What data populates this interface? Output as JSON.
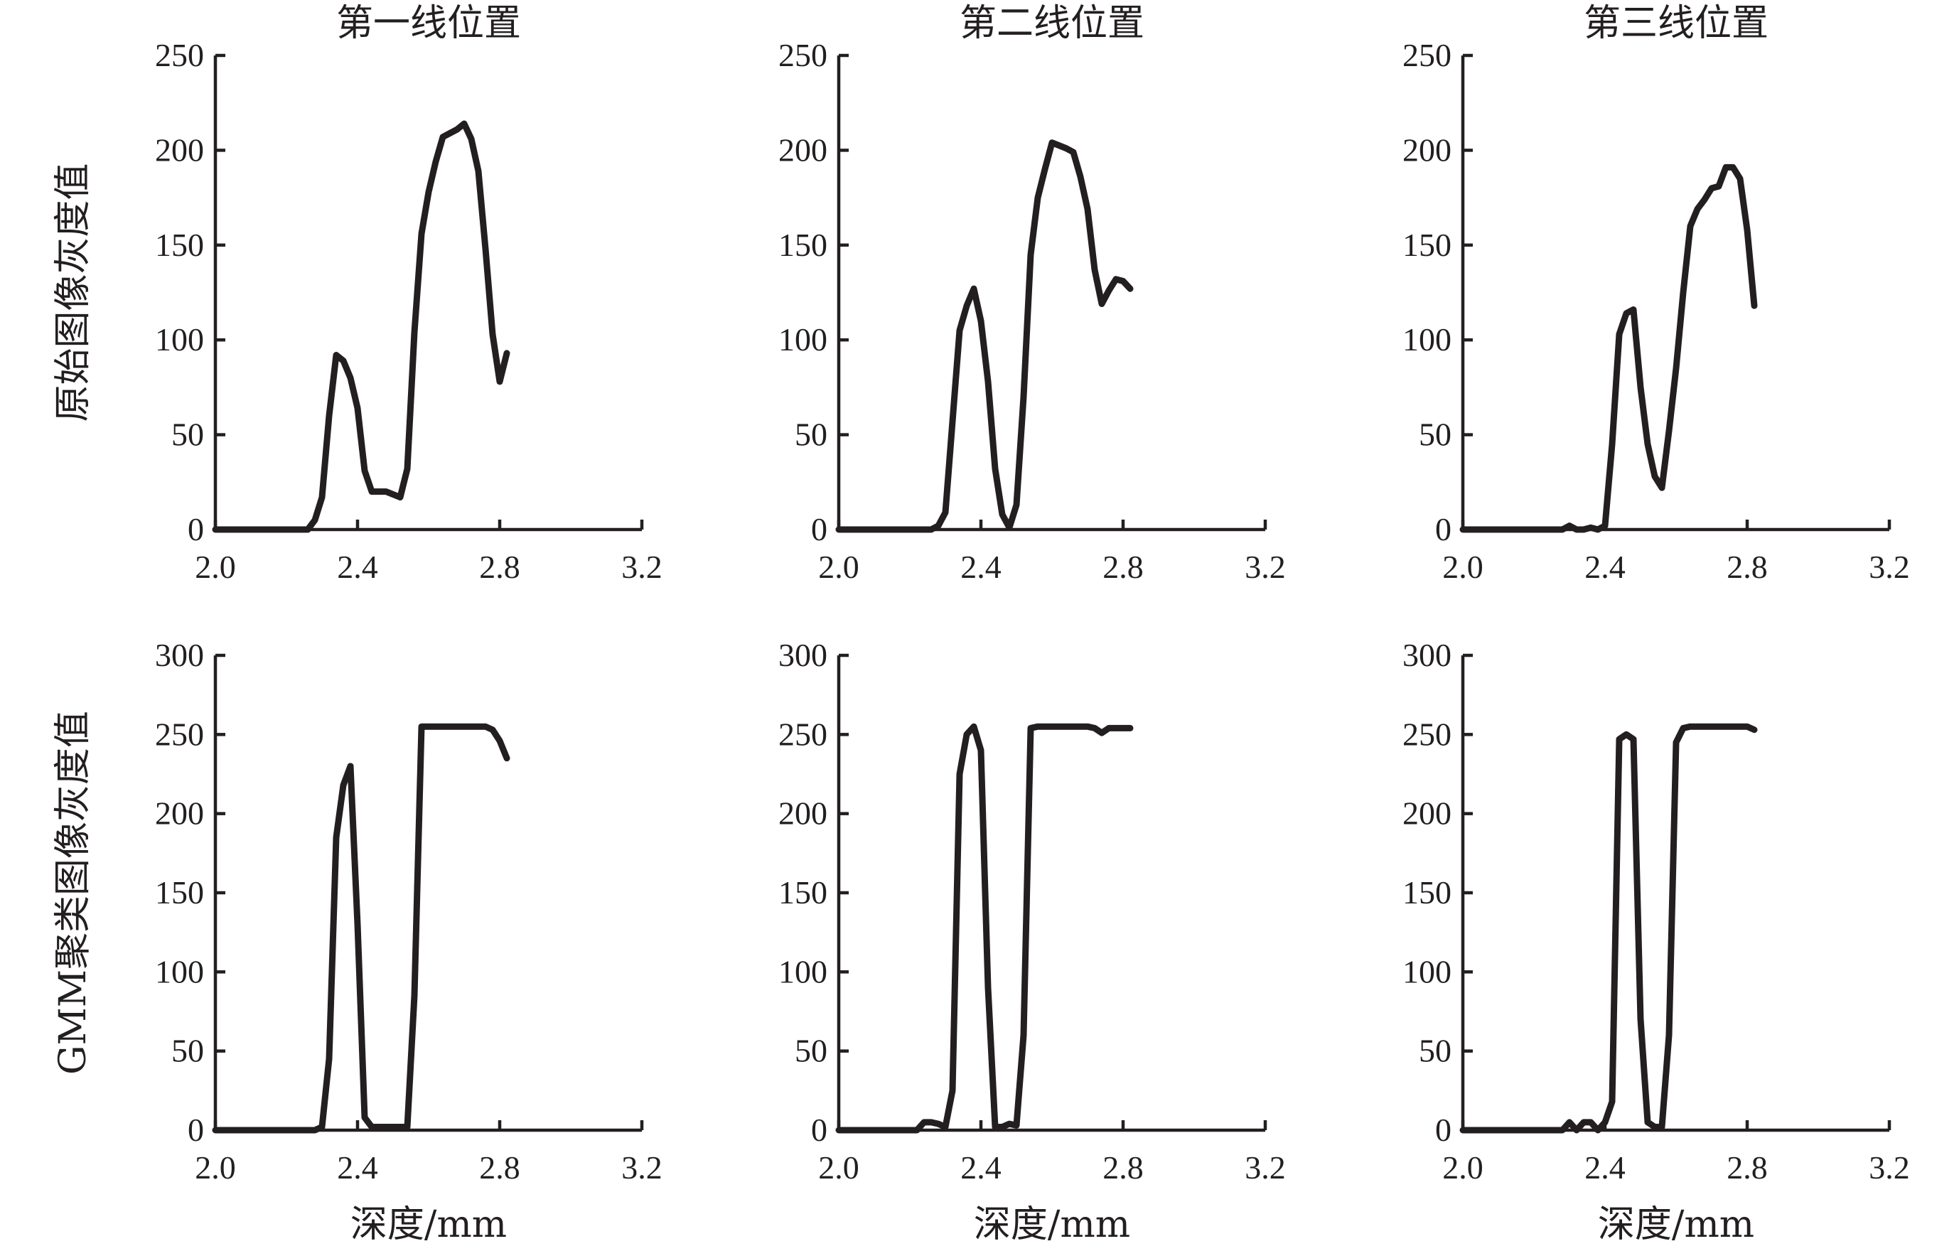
{
  "chart_data": [
    {
      "type": "line",
      "title": "第一线位置",
      "xlabel": "",
      "ylabel": "原始图像灰度值",
      "xlim": [
        2.0,
        3.2
      ],
      "ylim": [
        0,
        250
      ],
      "xticks": [
        "2.0",
        "2.4",
        "2.8",
        "3.2"
      ],
      "yticks": [
        "0",
        "50",
        "100",
        "150",
        "200",
        "250"
      ],
      "grid": false,
      "legend": "none",
      "series": [
        {
          "x": [
            2.0,
            2.26,
            2.28,
            2.3,
            2.32,
            2.34,
            2.36,
            2.38,
            2.4,
            2.42,
            2.44,
            2.48,
            2.52,
            2.54,
            2.56,
            2.58,
            2.6,
            2.62,
            2.64,
            2.66,
            2.68,
            2.7,
            2.72,
            2.74,
            2.76,
            2.78,
            2.8,
            2.82
          ],
          "y": [
            0,
            0,
            5,
            17,
            60,
            92,
            89,
            80,
            64,
            31,
            20,
            20,
            17,
            32,
            104,
            156,
            178,
            194,
            207,
            209,
            211,
            214,
            206,
            189,
            148,
            103,
            78,
            93
          ]
        }
      ]
    },
    {
      "type": "line",
      "title": "第二线位置",
      "xlabel": "",
      "ylabel": "",
      "xlim": [
        2.0,
        3.2
      ],
      "ylim": [
        0,
        250
      ],
      "xticks": [
        "2.0",
        "2.4",
        "2.8",
        "3.2"
      ],
      "yticks": [
        "0",
        "50",
        "100",
        "150",
        "200",
        "250"
      ],
      "grid": false,
      "legend": "none",
      "series": [
        {
          "x": [
            2.0,
            2.26,
            2.28,
            2.3,
            2.34,
            2.36,
            2.38,
            2.4,
            2.42,
            2.44,
            2.46,
            2.48,
            2.5,
            2.52,
            2.54,
            2.56,
            2.58,
            2.6,
            2.64,
            2.66,
            2.68,
            2.7,
            2.72,
            2.74,
            2.76,
            2.78,
            2.8,
            2.82
          ],
          "y": [
            0,
            0,
            2,
            9,
            105,
            118,
            127,
            110,
            78,
            32,
            8,
            1,
            13,
            70,
            145,
            175,
            190,
            204,
            201,
            199,
            186,
            169,
            137,
            119,
            126,
            132,
            131,
            127
          ]
        }
      ]
    },
    {
      "type": "line",
      "title": "第三线位置",
      "xlabel": "",
      "ylabel": "",
      "xlim": [
        2.0,
        3.2
      ],
      "ylim": [
        0,
        250
      ],
      "xticks": [
        "2.0",
        "2.4",
        "2.8",
        "3.2"
      ],
      "yticks": [
        "0",
        "50",
        "100",
        "150",
        "200",
        "250"
      ],
      "grid": false,
      "legend": "none",
      "series": [
        {
          "x": [
            2.0,
            2.28,
            2.3,
            2.32,
            2.34,
            2.36,
            2.38,
            2.4,
            2.42,
            2.44,
            2.46,
            2.48,
            2.5,
            2.52,
            2.54,
            2.56,
            2.58,
            2.6,
            2.62,
            2.64,
            2.66,
            2.68,
            2.7,
            2.72,
            2.74,
            2.76,
            2.78,
            2.8,
            2.82
          ],
          "y": [
            0,
            0,
            2,
            0,
            0,
            1,
            0,
            2,
            45,
            103,
            114,
            116,
            75,
            45,
            28,
            22,
            52,
            85,
            125,
            160,
            169,
            174,
            180,
            181,
            191,
            191,
            185,
            158,
            118
          ]
        }
      ]
    },
    {
      "type": "line",
      "title": "",
      "xlabel": "深度/mm",
      "ylabel": "GMM聚类图像灰度值",
      "xlim": [
        2.0,
        3.2
      ],
      "ylim": [
        0,
        300
      ],
      "xticks": [
        "2.0",
        "2.4",
        "2.8",
        "3.2"
      ],
      "yticks": [
        "0",
        "50",
        "100",
        "150",
        "200",
        "250",
        "300"
      ],
      "grid": false,
      "legend": "none",
      "series": [
        {
          "x": [
            2.0,
            2.28,
            2.3,
            2.32,
            2.34,
            2.36,
            2.38,
            2.4,
            2.42,
            2.44,
            2.46,
            2.5,
            2.54,
            2.56,
            2.58,
            2.6,
            2.64,
            2.68,
            2.72,
            2.76,
            2.78,
            2.8,
            2.82
          ],
          "y": [
            0,
            0,
            2,
            45,
            185,
            218,
            230,
            130,
            8,
            2,
            2,
            2,
            2,
            85,
            255,
            255,
            255,
            255,
            255,
            255,
            253,
            246,
            235
          ]
        }
      ]
    },
    {
      "type": "line",
      "title": "",
      "xlabel": "深度/mm",
      "ylabel": "",
      "xlim": [
        2.0,
        3.2
      ],
      "ylim": [
        0,
        300
      ],
      "xticks": [
        "2.0",
        "2.4",
        "2.8",
        "3.2"
      ],
      "yticks": [
        "0",
        "50",
        "100",
        "150",
        "200",
        "250",
        "300"
      ],
      "grid": false,
      "legend": "none",
      "series": [
        {
          "x": [
            2.0,
            2.22,
            2.24,
            2.26,
            2.28,
            2.3,
            2.32,
            2.34,
            2.36,
            2.38,
            2.4,
            2.42,
            2.44,
            2.46,
            2.48,
            2.5,
            2.52,
            2.54,
            2.56,
            2.6,
            2.64,
            2.68,
            2.7,
            2.72,
            2.74,
            2.76,
            2.78,
            2.8,
            2.82
          ],
          "y": [
            0,
            0,
            5,
            5,
            4,
            2,
            25,
            225,
            250,
            255,
            240,
            90,
            2,
            2,
            4,
            3,
            60,
            254,
            255,
            255,
            255,
            255,
            255,
            254,
            251,
            254,
            254,
            254,
            254
          ]
        }
      ]
    },
    {
      "type": "line",
      "title": "",
      "xlabel": "深度/mm",
      "ylabel": "",
      "xlim": [
        2.0,
        3.2
      ],
      "ylim": [
        0,
        300
      ],
      "xticks": [
        "2.0",
        "2.4",
        "2.8",
        "3.2"
      ],
      "yticks": [
        "0",
        "50",
        "100",
        "150",
        "200",
        "250",
        "300"
      ],
      "grid": false,
      "legend": "none",
      "series": [
        {
          "x": [
            2.0,
            2.28,
            2.3,
            2.32,
            2.34,
            2.36,
            2.38,
            2.4,
            2.42,
            2.44,
            2.46,
            2.48,
            2.5,
            2.52,
            2.54,
            2.56,
            2.58,
            2.6,
            2.62,
            2.64,
            2.68,
            2.72,
            2.76,
            2.8,
            2.82
          ],
          "y": [
            0,
            0,
            5,
            0,
            5,
            5,
            0,
            5,
            18,
            247,
            250,
            247,
            70,
            5,
            2,
            2,
            60,
            245,
            254,
            255,
            255,
            255,
            255,
            255,
            253
          ]
        }
      ]
    }
  ]
}
